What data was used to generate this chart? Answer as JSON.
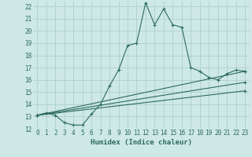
{
  "xlabel": "Humidex (Indice chaleur)",
  "xlim": [
    -0.5,
    23.5
  ],
  "ylim": [
    12,
    22.4
  ],
  "xticks": [
    0,
    1,
    2,
    3,
    4,
    5,
    6,
    7,
    8,
    9,
    10,
    11,
    12,
    13,
    14,
    15,
    16,
    17,
    18,
    19,
    20,
    21,
    22,
    23
  ],
  "yticks": [
    12,
    13,
    14,
    15,
    16,
    17,
    18,
    19,
    20,
    21,
    22
  ],
  "background_color": "#cde8e5",
  "grid_color": "#aecfcc",
  "line_color": "#2d6b62",
  "line1_x": [
    0,
    1,
    2,
    3,
    4,
    5,
    6,
    7,
    8,
    9,
    10,
    11,
    12,
    13,
    14,
    15,
    16,
    17,
    18,
    19,
    20,
    21,
    22,
    23
  ],
  "line1_y": [
    13.1,
    13.3,
    13.1,
    12.5,
    12.3,
    12.3,
    13.2,
    14.0,
    15.5,
    16.8,
    18.8,
    19.0,
    22.3,
    20.5,
    21.8,
    20.5,
    20.3,
    17.0,
    16.7,
    16.2,
    16.0,
    16.5,
    16.8,
    16.7
  ],
  "line2_x": [
    0,
    23
  ],
  "line2_y": [
    13.1,
    16.7
  ],
  "line3_x": [
    0,
    23
  ],
  "line3_y": [
    13.1,
    15.8
  ],
  "line4_x": [
    0,
    23
  ],
  "line4_y": [
    13.1,
    15.1
  ],
  "xlabel_fontsize": 6.5,
  "tick_fontsize": 5.5
}
